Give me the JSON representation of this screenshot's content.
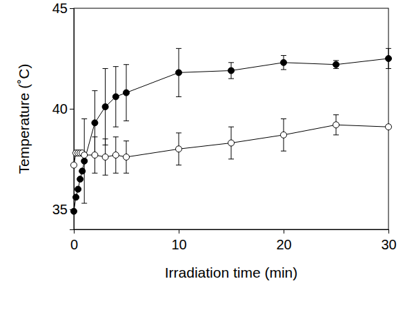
{
  "chart_data": {
    "type": "line",
    "x_label": "Irradiation time (min)",
    "y_label": "Temperature (˚C)",
    "x": [
      0,
      0.2,
      0.4,
      0.6,
      0.8,
      1,
      2,
      3,
      4,
      5,
      10,
      15,
      20,
      25,
      30
    ],
    "series": [
      {
        "color": "#000000",
        "marker": "filled-circle",
        "line_style": "solid",
        "values": [
          34.9,
          35.6,
          36.0,
          36.5,
          36.9,
          37.4,
          39.3,
          40.1,
          40.6,
          40.8,
          41.8,
          41.9,
          42.3,
          42.2,
          42.5
        ],
        "errors": [
          0,
          0,
          0,
          0,
          0,
          2.1,
          1.6,
          1.9,
          1.5,
          1.4,
          1.2,
          0.4,
          0.35,
          0.2,
          0.5
        ]
      },
      {
        "color": "#000000",
        "marker": "open-circle",
        "line_style": "solid",
        "values": [
          37.2,
          37.8,
          37.8,
          37.8,
          37.8,
          37.7,
          37.7,
          37.6,
          37.7,
          37.6,
          38.0,
          38.3,
          38.7,
          39.2,
          39.1
        ],
        "errors": [
          0,
          0,
          0,
          0,
          0,
          0,
          0.9,
          0.9,
          0.9,
          0.8,
          0.8,
          0.8,
          0.8,
          0.5,
          0
        ]
      }
    ],
    "xlim": [
      0,
      30
    ],
    "xticks": [
      0,
      10,
      20,
      30
    ],
    "ylim": [
      34,
      45
    ],
    "yticks": [
      35,
      40,
      45
    ],
    "grid": false
  }
}
